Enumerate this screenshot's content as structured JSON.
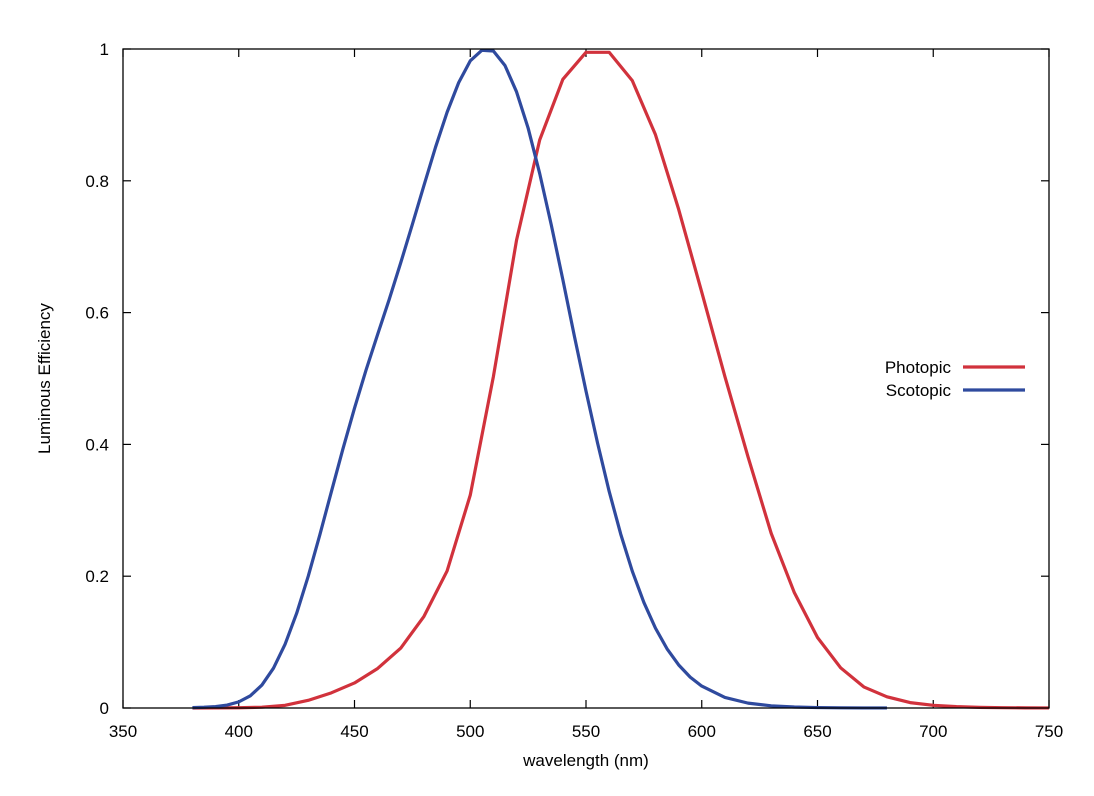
{
  "chart_data": {
    "type": "line",
    "title": "",
    "xlabel": "wavelength (nm)",
    "ylabel": "Luminous Efficiency",
    "xlim": [
      350,
      750
    ],
    "ylim": [
      0,
      1
    ],
    "xticks": [
      350,
      400,
      450,
      500,
      550,
      600,
      650,
      700,
      750
    ],
    "yticks": [
      0,
      0.2,
      0.4,
      0.6,
      0.8,
      1
    ],
    "ytick_labels": [
      "0",
      "0.2",
      "0.4",
      "0.6",
      "0.8",
      "1"
    ],
    "grid": false,
    "legend_position": "right",
    "series": [
      {
        "name": "Photopic",
        "color": "#d1323c",
        "x": [
          380,
          390,
          400,
          410,
          420,
          430,
          440,
          450,
          460,
          470,
          480,
          490,
          500,
          510,
          520,
          530,
          540,
          550,
          560,
          570,
          580,
          590,
          600,
          610,
          620,
          630,
          640,
          650,
          660,
          670,
          680,
          690,
          700,
          710,
          720,
          730,
          740,
          750
        ],
        "y": [
          0.0,
          0.0001,
          0.0004,
          0.0012,
          0.004,
          0.0116,
          0.023,
          0.038,
          0.06,
          0.091,
          0.139,
          0.208,
          0.323,
          0.503,
          0.71,
          0.862,
          0.954,
          0.995,
          0.995,
          0.952,
          0.87,
          0.757,
          0.631,
          0.503,
          0.381,
          0.265,
          0.175,
          0.107,
          0.061,
          0.032,
          0.017,
          0.0082,
          0.0041,
          0.0021,
          0.001,
          0.0005,
          0.0002,
          0.0001
        ]
      },
      {
        "name": "Scotopic",
        "color": "#2f4a9e",
        "x": [
          380,
          385,
          390,
          395,
          400,
          405,
          410,
          415,
          420,
          425,
          430,
          435,
          440,
          445,
          450,
          455,
          460,
          465,
          470,
          475,
          480,
          485,
          490,
          495,
          500,
          505,
          510,
          515,
          520,
          525,
          530,
          535,
          540,
          545,
          550,
          555,
          560,
          565,
          570,
          575,
          580,
          585,
          590,
          595,
          600,
          610,
          620,
          630,
          640,
          650,
          660,
          670,
          680
        ],
        "y": [
          0.0006,
          0.0011,
          0.0022,
          0.0045,
          0.0093,
          0.0185,
          0.0348,
          0.0604,
          0.0966,
          0.1436,
          0.1998,
          0.2625,
          0.3281,
          0.3931,
          0.455,
          0.513,
          0.567,
          0.62,
          0.676,
          0.734,
          0.793,
          0.851,
          0.904,
          0.949,
          0.982,
          0.998,
          0.997,
          0.975,
          0.935,
          0.88,
          0.811,
          0.733,
          0.65,
          0.564,
          0.481,
          0.402,
          0.3288,
          0.2639,
          0.2076,
          0.1602,
          0.1212,
          0.0899,
          0.0655,
          0.0469,
          0.0332,
          0.016,
          0.0074,
          0.0033,
          0.0015,
          0.0007,
          0.0003,
          0.0001,
          0.0001
        ]
      }
    ]
  }
}
